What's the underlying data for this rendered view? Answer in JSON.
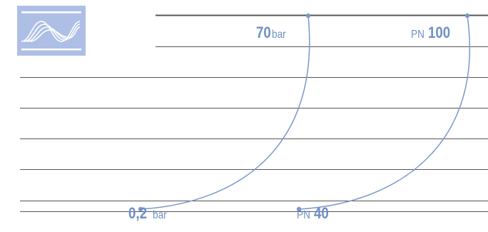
{
  "colors": {
    "line": "#555555",
    "curve": "#7b97cc",
    "label": "#6f8fc6",
    "logo_bg": "#aebfe6",
    "logo_mark": "#ffffff"
  },
  "icon": "sine-waves-logo-icon",
  "labels": {
    "pressure_max": {
      "value": "70",
      "unit": "bar"
    },
    "pressure_min": {
      "value": "0,2",
      "unit": "bar"
    },
    "pn_max": {
      "prefix": "PN",
      "value": "100"
    },
    "pn_min": {
      "prefix": "PN",
      "value": "40"
    }
  }
}
